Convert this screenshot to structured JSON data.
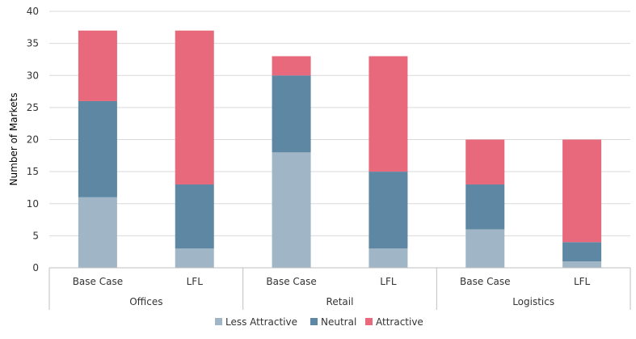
{
  "chart_data": {
    "type": "bar",
    "stacked": true,
    "ylabel": "Number of Markets",
    "ylim": [
      0,
      40
    ],
    "yticks": [
      0,
      5,
      10,
      15,
      20,
      25,
      30,
      35,
      40
    ],
    "grid": true,
    "legend_position": "bottom",
    "groups": [
      {
        "name": "Offices",
        "categories": [
          "Base Case",
          "LFL"
        ]
      },
      {
        "name": "Retail",
        "categories": [
          "Base Case",
          "LFL"
        ]
      },
      {
        "name": "Logistics",
        "categories": [
          "Base Case",
          "LFL"
        ]
      }
    ],
    "categories": [
      "Base Case",
      "LFL",
      "Base Case",
      "LFL",
      "Base Case",
      "LFL"
    ],
    "series": [
      {
        "name": "Less Attractive",
        "color": "#a0b6c6",
        "values": [
          11,
          3,
          18,
          3,
          6,
          1
        ]
      },
      {
        "name": "Neutral",
        "color": "#5e87a3",
        "values": [
          15,
          10,
          12,
          12,
          7,
          3
        ]
      },
      {
        "name": "Attractive",
        "color": "#e8697b",
        "values": [
          11,
          24,
          3,
          18,
          7,
          16
        ]
      }
    ]
  }
}
